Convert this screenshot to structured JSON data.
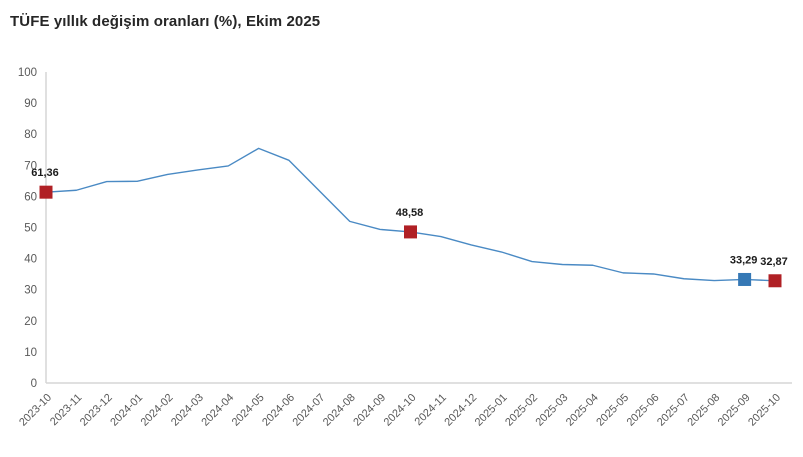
{
  "title": "TÜFE yıllık değişim oranları (%), Ekim 2025",
  "colors": {
    "line": "#4a8ac4",
    "marker_red": "#b02025",
    "marker_blue": "#3578b5",
    "axis_line": "#d6d6d6",
    "tick_text": "#595959",
    "title_text": "#262626",
    "data_label_text": "#1a1a1a",
    "background": "#ffffff"
  },
  "chart_data": {
    "type": "line",
    "title": "TÜFE yıllık değişim oranları (%), Ekim 2025",
    "categories": [
      "2023-10",
      "2023-11",
      "2023-12",
      "2024-01",
      "2024-02",
      "2024-03",
      "2024-04",
      "2024-05",
      "2024-06",
      "2024-07",
      "2024-08",
      "2024-09",
      "2024-10",
      "2024-11",
      "2024-12",
      "2025-01",
      "2025-02",
      "2025-03",
      "2025-04",
      "2025-05",
      "2025-06",
      "2025-07",
      "2025-08",
      "2025-09",
      "2025-10"
    ],
    "series": [
      {
        "name": "",
        "values": [
          61.36,
          61.98,
          64.77,
          64.86,
          67.07,
          68.5,
          69.8,
          75.45,
          71.6,
          61.78,
          51.97,
          49.38,
          48.58,
          47.09,
          44.38,
          42.12,
          39.05,
          38.1,
          37.86,
          35.41,
          35.05,
          33.52,
          32.95,
          33.29,
          32.87
        ]
      }
    ],
    "xlabel": "",
    "ylabel": "",
    "ylim": [
      0,
      100
    ],
    "yticks": [
      0,
      10,
      20,
      30,
      40,
      50,
      60,
      70,
      80,
      90,
      100
    ],
    "grid": false,
    "legend": false,
    "x_tick_rotation": -45,
    "annotations": [
      {
        "index": 0,
        "label": "61,36",
        "marker": "red"
      },
      {
        "index": 12,
        "label": "48,58",
        "marker": "red"
      },
      {
        "index": 23,
        "label": "33,29",
        "marker": "blue"
      },
      {
        "index": 24,
        "label": "32,87",
        "marker": "red"
      }
    ]
  }
}
